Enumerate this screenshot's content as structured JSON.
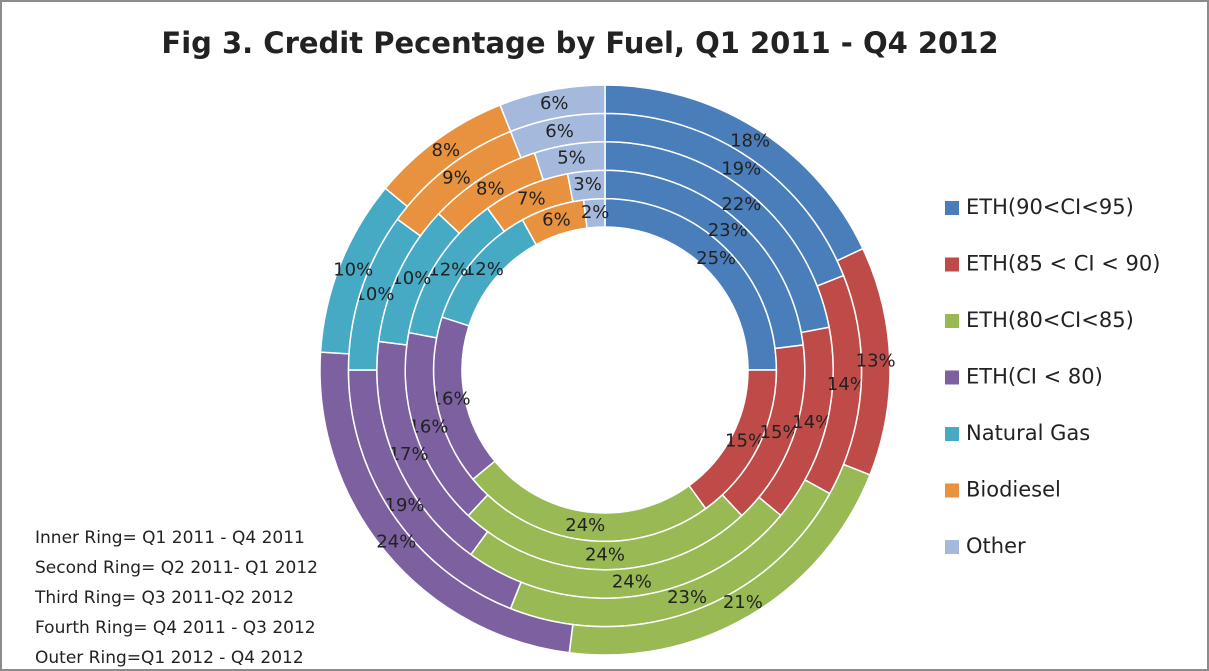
{
  "chart_data": {
    "type": "donut",
    "title": "Fig 3. Credit Pecentage by Fuel, Q1 2011 - Q4 2012",
    "categories": [
      "ETH(90<CI<95)",
      "ETH(85 < CI < 90)",
      "ETH(80<CI<85)",
      "ETH(CI < 80)",
      "Natural Gas",
      "Biodiesel",
      "Other"
    ],
    "colors": [
      "#4a7ebb",
      "#be4b48",
      "#98b954",
      "#7d60a0",
      "#46aac5",
      "#e8913f",
      "#a5b9dc"
    ],
    "series": [
      {
        "values": [
          25,
          15,
          24,
          16,
          12,
          6,
          2
        ],
        "value_labels": [
          "25%",
          "15%",
          "24%",
          "16%",
          "12%",
          "6%",
          "2%"
        ]
      },
      {
        "values": [
          23,
          15,
          24,
          16,
          12,
          7,
          3
        ],
        "value_labels": [
          "23%",
          "15%",
          "24%",
          "16%",
          "12%",
          "7%",
          "3%"
        ]
      },
      {
        "values": [
          22,
          14,
          24,
          17,
          10,
          8,
          5
        ],
        "value_labels": [
          "22%",
          "14%",
          "24%",
          "17%",
          "10%",
          "8%",
          "5%"
        ]
      },
      {
        "values": [
          19,
          14,
          23,
          19,
          10,
          9,
          6
        ],
        "value_labels": [
          "19%",
          "14%",
          "23%",
          "19%",
          "10%",
          "9%",
          "6%"
        ]
      },
      {
        "values": [
          18,
          13,
          21,
          24,
          10,
          8,
          6
        ],
        "value_labels": [
          "18%",
          "13%",
          "21%",
          "24%",
          "10%",
          "8%",
          "6%"
        ]
      }
    ],
    "notes": [
      "Inner Ring= Q1 2011 - Q4 2011",
      "Second Ring= Q2 2011- Q1 2012",
      "Third Ring= Q3 2011-Q2 2012",
      "Fourth Ring= Q4 2011 - Q3 2012",
      "Outer Ring=Q1 2012 - Q4 2012"
    ],
    "legend": "right"
  }
}
